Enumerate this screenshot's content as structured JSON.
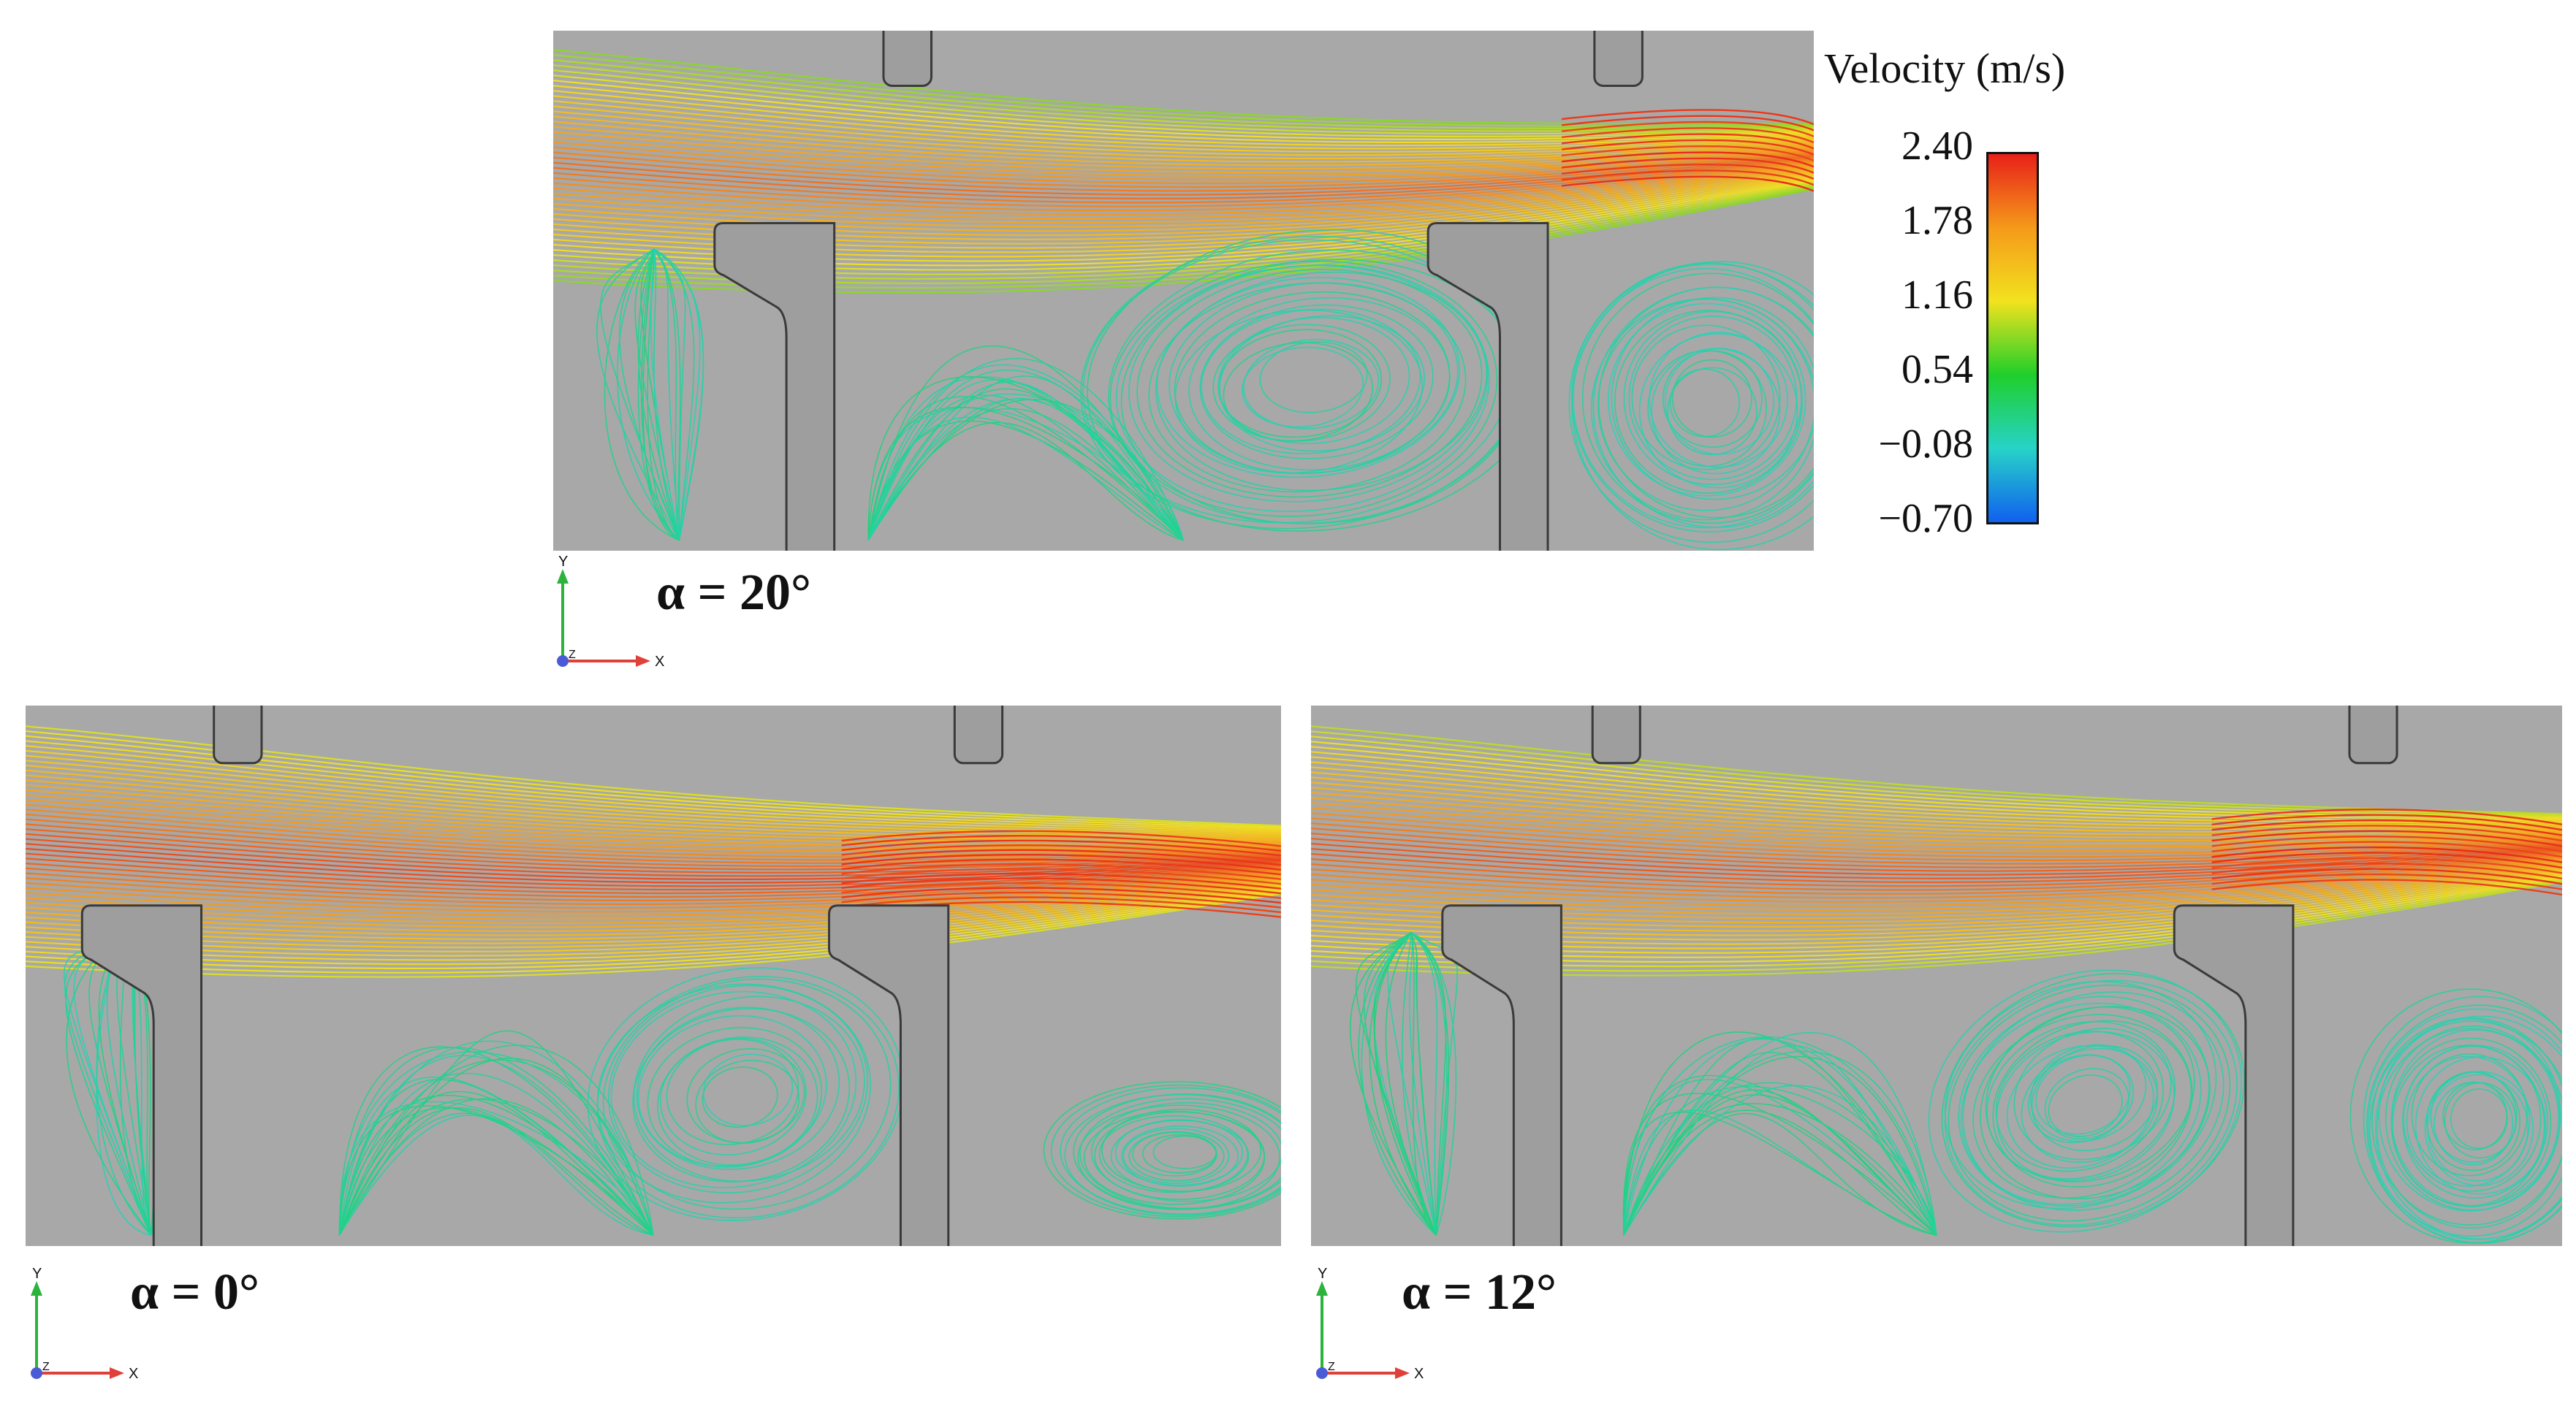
{
  "figure": {
    "panels": [
      {
        "id": "p20",
        "alpha_label": "α = 20°"
      },
      {
        "id": "p0",
        "alpha_label": "α = 0°"
      },
      {
        "id": "p12",
        "alpha_label": "α = 12°"
      }
    ],
    "axes_triad": {
      "y": "Y",
      "x": "X",
      "z": "Z"
    },
    "legend": {
      "title": "Velocity (m/s)",
      "ticks": [
        "2.40",
        "1.78",
        "1.16",
        "0.54",
        "−0.08",
        "−0.70"
      ],
      "colors": [
        "#e8201a",
        "#f59a1a",
        "#f2e21e",
        "#1fcf2a",
        "#27d3c8",
        "#1060ee"
      ]
    }
  }
}
